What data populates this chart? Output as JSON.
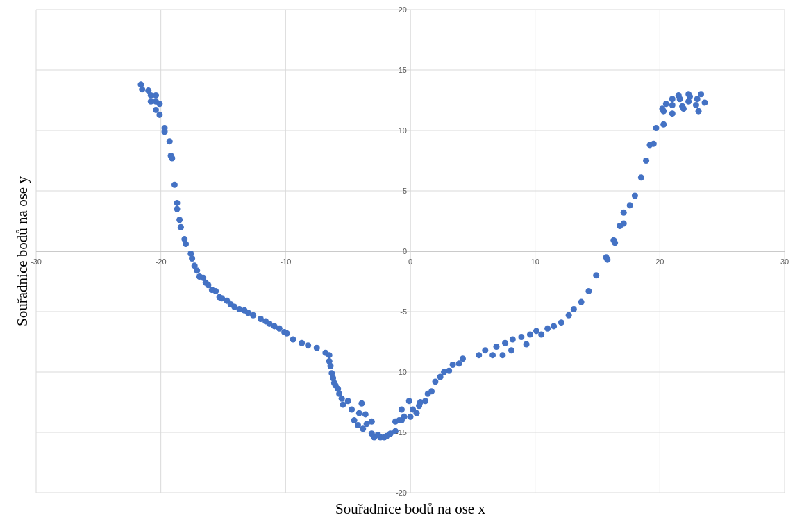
{
  "chart_data": {
    "type": "scatter",
    "xlabel": "Souřadnice bodů na ose x",
    "ylabel": "Souřadnice bodů na ose y",
    "xlim": [
      -30,
      30
    ],
    "xticks": [
      -30,
      -20,
      -10,
      0,
      10,
      20,
      30
    ],
    "ylim": [
      -20,
      20
    ],
    "yticks": [
      -20,
      -15,
      -10,
      -5,
      0,
      5,
      10,
      15,
      20
    ],
    "grid": true,
    "marker": "circle",
    "legend": false,
    "series": [
      {
        "color": "#4472c4",
        "x": [
          -21.6,
          -21.5,
          -21.0,
          -20.8,
          -20.4,
          -20.8,
          -20.4,
          -20.4,
          -20.1,
          -20.1,
          -19.7,
          -19.7,
          -19.3,
          -19.2,
          -19.1,
          -18.9,
          -18.7,
          -18.7,
          -18.5,
          -18.4,
          -18.1,
          -18.0,
          -17.6,
          -17.5,
          -17.3,
          -17.1,
          -16.9,
          -16.6,
          -16.4,
          -16.2,
          -15.9,
          -15.6,
          -15.3,
          -15.1,
          -14.7,
          -14.4,
          -14.1,
          -13.7,
          -13.3,
          -13.0,
          -12.6,
          -12.0,
          -11.6,
          -11.3,
          -10.9,
          -10.5,
          -10.1,
          -9.9,
          -9.4,
          -8.7,
          -8.2,
          -7.5,
          -6.8,
          -6.5,
          -6.5,
          -6.4,
          -6.3,
          -6.2,
          -6.1,
          -6.0,
          -5.8,
          -5.7,
          -5.5,
          -5.4,
          -5.0,
          -4.7,
          -4.5,
          -4.1,
          -3.9,
          -4.2,
          -3.8,
          -3.5,
          -3.6,
          -3.1,
          -3.1,
          -2.9,
          -2.6,
          -2.4,
          -2.1,
          -1.9,
          -1.6,
          -1.2,
          -1.2,
          -0.9,
          -0.7,
          -0.5,
          -0.7,
          -0.1,
          0.0,
          0.2,
          0.5,
          0.7,
          0.8,
          1.2,
          1.4,
          1.7,
          2.0,
          2.4,
          2.7,
          3.1,
          3.4,
          3.9,
          4.2,
          5.5,
          6.0,
          6.9,
          6.6,
          7.4,
          7.6,
          8.2,
          8.1,
          8.9,
          9.3,
          9.6,
          10.1,
          10.5,
          11.0,
          11.5,
          12.1,
          12.7,
          13.1,
          13.7,
          14.3,
          14.9,
          15.7,
          15.8,
          16.3,
          16.4,
          16.8,
          17.1,
          17.1,
          17.6,
          18.0,
          18.5,
          18.9,
          19.2,
          19.5,
          19.7,
          20.3,
          20.2,
          20.3,
          20.5,
          21.0,
          21.0,
          21.0,
          21.5,
          21.6,
          21.8,
          21.9,
          22.3,
          22.4,
          22.3,
          22.9,
          23.1,
          23.0,
          23.3,
          23.6
        ],
        "values": [
          13.8,
          13.4,
          13.3,
          12.9,
          12.9,
          12.4,
          12.4,
          11.7,
          12.2,
          11.3,
          10.2,
          9.9,
          9.1,
          7.9,
          7.7,
          5.5,
          4.0,
          3.5,
          2.6,
          2.0,
          1.0,
          0.6,
          -0.2,
          -0.6,
          -1.2,
          -1.6,
          -2.1,
          -2.2,
          -2.6,
          -2.8,
          -3.2,
          -3.3,
          -3.8,
          -3.9,
          -4.1,
          -4.4,
          -4.6,
          -4.8,
          -4.9,
          -5.1,
          -5.3,
          -5.6,
          -5.8,
          -6.0,
          -6.2,
          -6.4,
          -6.7,
          -6.8,
          -7.3,
          -7.6,
          -7.8,
          -8.0,
          -8.4,
          -8.6,
          -9.1,
          -9.5,
          -10.1,
          -10.5,
          -10.9,
          -11.1,
          -11.4,
          -11.8,
          -12.2,
          -12.7,
          -12.4,
          -13.1,
          -14.0,
          -13.4,
          -12.6,
          -14.4,
          -14.7,
          -14.3,
          -13.5,
          -14.1,
          -15.1,
          -15.4,
          -15.2,
          -15.4,
          -15.4,
          -15.3,
          -15.1,
          -14.9,
          -14.1,
          -14.0,
          -14.0,
          -13.7,
          -13.1,
          -12.4,
          -13.7,
          -13.1,
          -13.4,
          -12.8,
          -12.5,
          -12.4,
          -11.8,
          -11.6,
          -10.8,
          -10.4,
          -10.0,
          -9.9,
          -9.4,
          -9.3,
          -8.9,
          -8.6,
          -8.2,
          -7.9,
          -8.6,
          -8.6,
          -7.6,
          -7.3,
          -8.2,
          -7.1,
          -7.7,
          -6.9,
          -6.6,
          -6.9,
          -6.4,
          -6.2,
          -5.9,
          -5.3,
          -4.8,
          -4.2,
          -3.3,
          -2.0,
          -0.5,
          -0.7,
          0.9,
          0.7,
          2.1,
          2.3,
          3.2,
          3.8,
          4.6,
          6.1,
          7.5,
          8.8,
          8.9,
          10.2,
          10.5,
          11.8,
          11.6,
          12.2,
          11.4,
          12.1,
          12.6,
          12.9,
          12.6,
          12.0,
          11.8,
          13.0,
          12.8,
          12.4,
          12.1,
          11.6,
          12.6,
          13.0,
          12.3
        ]
      }
    ]
  }
}
